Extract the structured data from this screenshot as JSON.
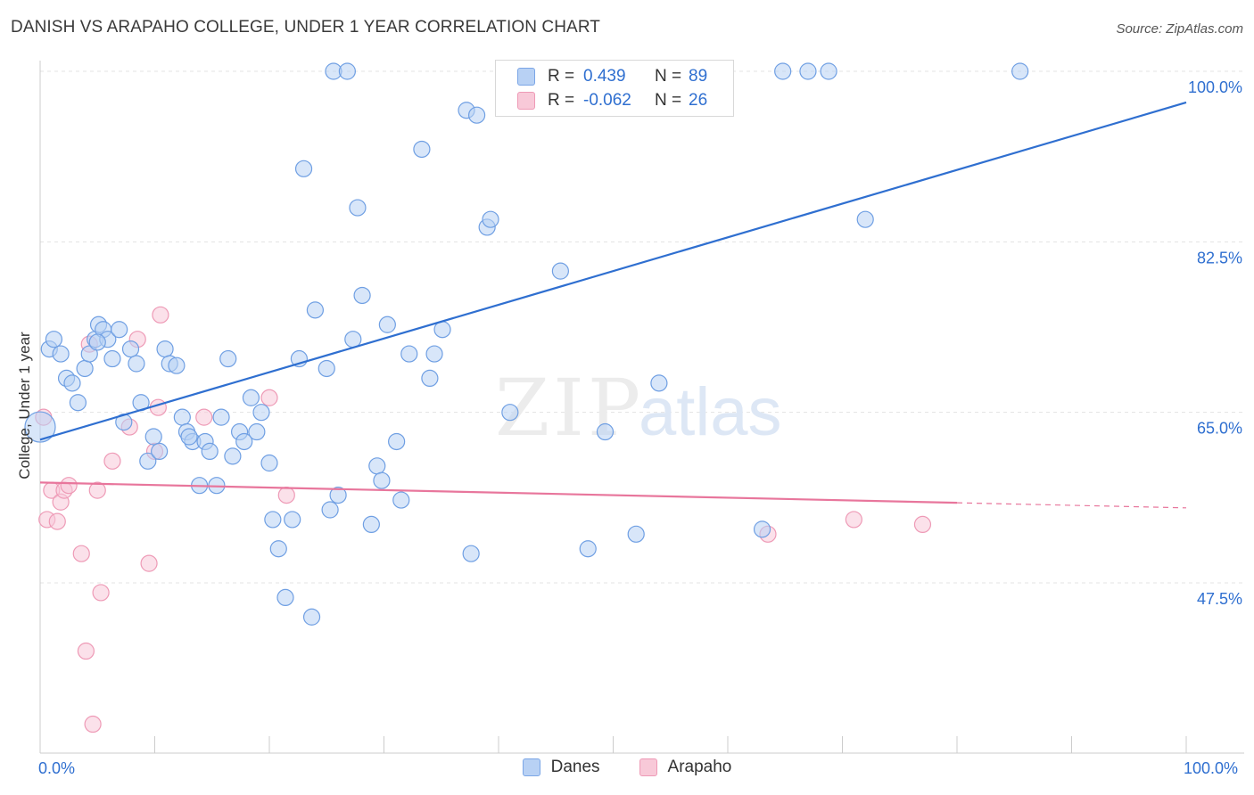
{
  "title": "DANISH VS ARAPAHO COLLEGE, UNDER 1 YEAR CORRELATION CHART",
  "source": "Source: ZipAtlas.com",
  "watermark": {
    "zip": "ZIP",
    "atlas": "atlas"
  },
  "colors": {
    "danes": "#6f9fe3",
    "danes_fill": "#b8d1f4",
    "arapaho": "#ee9ab6",
    "arapaho_fill": "#f8c9d8",
    "danes_line": "#2f6fd0",
    "arapaho_line": "#e8769c",
    "tick_text": "#2f6fd0",
    "grid": "#e3e3e3"
  },
  "stats": [
    {
      "series": "Danes",
      "r_label": "R =",
      "r_value": "0.439",
      "n_label": "N =",
      "n_value": "89"
    },
    {
      "series": "Arapaho",
      "r_label": "R =",
      "r_value": "-0.062",
      "n_label": "N =",
      "n_value": "26"
    }
  ],
  "chart_data": {
    "type": "scatter",
    "title": "DANISH VS ARAPAHO COLLEGE, UNDER 1 YEAR CORRELATION CHART",
    "xlabel": "",
    "ylabel": "College, Under 1 year",
    "xlim": [
      0,
      100
    ],
    "ylim": [
      30,
      102
    ],
    "x_tick_labels": [
      "0.0%",
      "100.0%"
    ],
    "y_ticks": [
      47.5,
      65.0,
      82.5,
      100.0
    ],
    "y_tick_labels": [
      "47.5%",
      "65.0%",
      "82.5%",
      "100.0%"
    ],
    "grid": true,
    "legend": [
      "Danes",
      "Arapaho"
    ],
    "series": [
      {
        "name": "Danes",
        "r": 0.439,
        "n": 89,
        "trend": {
          "x0": 0,
          "y0": 62.2,
          "x1": 100,
          "y1": 96.8
        },
        "points": [
          [
            0.0,
            63.5
          ],
          [
            0.8,
            71.5
          ],
          [
            1.2,
            72.5
          ],
          [
            1.8,
            71.0
          ],
          [
            2.3,
            68.5
          ],
          [
            2.8,
            68.0
          ],
          [
            3.3,
            66.0
          ],
          [
            3.9,
            69.5
          ],
          [
            4.3,
            71.0
          ],
          [
            4.8,
            72.5
          ],
          [
            5.1,
            74.0
          ],
          [
            5.5,
            73.5
          ],
          [
            5.9,
            72.5
          ],
          [
            6.3,
            70.5
          ],
          [
            6.9,
            73.5
          ],
          [
            7.3,
            64.0
          ],
          [
            7.9,
            71.5
          ],
          [
            8.4,
            70.0
          ],
          [
            8.8,
            66.0
          ],
          [
            9.4,
            60.0
          ],
          [
            9.9,
            62.5
          ],
          [
            10.4,
            61.0
          ],
          [
            10.9,
            71.5
          ],
          [
            11.3,
            70.0
          ],
          [
            11.9,
            69.8
          ],
          [
            12.4,
            64.5
          ],
          [
            12.8,
            63.0
          ],
          [
            13.3,
            62.0
          ],
          [
            13.9,
            57.5
          ],
          [
            14.4,
            62.0
          ],
          [
            14.8,
            61.0
          ],
          [
            15.4,
            57.5
          ],
          [
            15.8,
            64.5
          ],
          [
            16.4,
            70.5
          ],
          [
            16.8,
            60.5
          ],
          [
            17.4,
            63.0
          ],
          [
            17.8,
            62.0
          ],
          [
            18.4,
            66.5
          ],
          [
            18.9,
            63.0
          ],
          [
            19.3,
            65.0
          ],
          [
            20.0,
            59.8
          ],
          [
            20.3,
            54.0
          ],
          [
            20.8,
            51.0
          ],
          [
            21.4,
            46.0
          ],
          [
            22.0,
            54.0
          ],
          [
            22.6,
            70.5
          ],
          [
            23.0,
            90.0
          ],
          [
            23.7,
            44.0
          ],
          [
            24.0,
            75.5
          ],
          [
            25.0,
            69.5
          ],
          [
            25.3,
            55.0
          ],
          [
            25.6,
            100.0
          ],
          [
            26.0,
            56.5
          ],
          [
            26.8,
            100.0
          ],
          [
            27.3,
            72.5
          ],
          [
            27.7,
            86.0
          ],
          [
            28.1,
            77.0
          ],
          [
            28.9,
            53.5
          ],
          [
            29.4,
            59.5
          ],
          [
            29.8,
            58.0
          ],
          [
            30.3,
            74.0
          ],
          [
            31.1,
            62.0
          ],
          [
            31.5,
            56.0
          ],
          [
            32.2,
            71.0
          ],
          [
            33.3,
            92.0
          ],
          [
            34.0,
            68.5
          ],
          [
            34.4,
            71.0
          ],
          [
            35.1,
            73.5
          ],
          [
            37.2,
            96.0
          ],
          [
            37.6,
            50.5
          ],
          [
            38.1,
            95.5
          ],
          [
            39.0,
            84.0
          ],
          [
            39.3,
            84.8
          ],
          [
            41.0,
            65.0
          ],
          [
            42.4,
            100.0
          ],
          [
            45.4,
            79.5
          ],
          [
            47.8,
            51.0
          ],
          [
            49.3,
            63.0
          ],
          [
            52.0,
            52.5
          ],
          [
            54.0,
            68.0
          ],
          [
            54.5,
            100.0
          ],
          [
            63.0,
            53.0
          ],
          [
            64.8,
            100.0
          ],
          [
            67.0,
            100.0
          ],
          [
            68.8,
            100.0
          ],
          [
            72.0,
            84.8
          ],
          [
            85.5,
            100.0
          ],
          [
            5.0,
            72.2
          ],
          [
            13.0,
            62.5
          ]
        ]
      },
      {
        "name": "Arapaho",
        "r": -0.062,
        "n": 26,
        "trend": {
          "x0": 0,
          "y0": 57.8,
          "x1": 100,
          "y1": 55.2,
          "solid_until": 80
        },
        "points": [
          [
            0.3,
            64.5
          ],
          [
            0.6,
            54.0
          ],
          [
            1.0,
            57.0
          ],
          [
            1.5,
            53.8
          ],
          [
            1.8,
            55.8
          ],
          [
            2.1,
            57.0
          ],
          [
            2.5,
            57.5
          ],
          [
            3.6,
            50.5
          ],
          [
            4.0,
            40.5
          ],
          [
            4.3,
            72.0
          ],
          [
            4.6,
            33.0
          ],
          [
            5.0,
            57.0
          ],
          [
            5.3,
            46.5
          ],
          [
            6.3,
            60.0
          ],
          [
            7.8,
            63.5
          ],
          [
            8.5,
            72.5
          ],
          [
            9.5,
            49.5
          ],
          [
            10.0,
            61.0
          ],
          [
            10.3,
            65.5
          ],
          [
            10.5,
            75.0
          ],
          [
            14.3,
            64.5
          ],
          [
            20.0,
            66.5
          ],
          [
            21.5,
            56.5
          ],
          [
            63.5,
            52.5
          ],
          [
            71.0,
            54.0
          ],
          [
            77.0,
            53.5
          ]
        ]
      }
    ]
  },
  "bottom_legend": [
    {
      "label": "Danes"
    },
    {
      "label": "Arapaho"
    }
  ]
}
